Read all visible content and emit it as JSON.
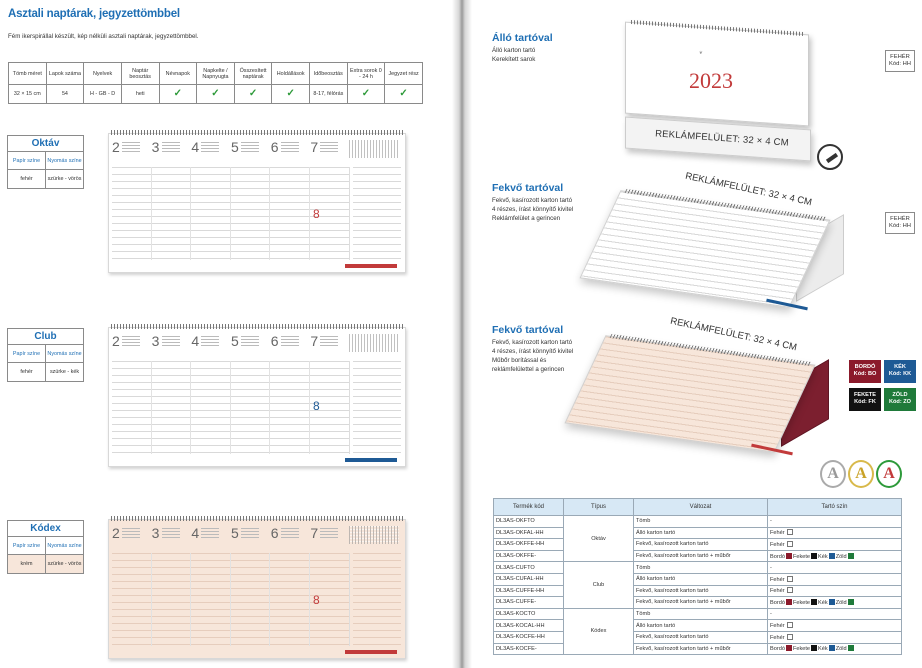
{
  "left": {
    "title": "Asztali naptárak, jegyzettömbbel",
    "intro": "Fém ikerspirállal készült, kép nélküli asztali naptárak, jegyzettömbbel.",
    "spec_headers": [
      "Tömb méret",
      "Lapok száma",
      "Nyelvek",
      "Naptár beosztás",
      "Névnapok",
      "Napkelte / Napnyugta",
      "Összesített naptárak",
      "Holdállások",
      "Időbeosztás",
      "Extra sorok 0 - 24 h",
      "Jegyzet rész"
    ],
    "spec_values": [
      "32 × 15 cm",
      "54",
      "H - GB - D",
      "heti",
      "✓",
      "✓",
      "✓",
      "✓",
      "8-17, félórás",
      "✓",
      "✓"
    ],
    "variant_head_paper": "Papír színe",
    "variant_head_print": "Nyomás színe",
    "variants": [
      {
        "name": "Oktáv",
        "paper": "fehér",
        "print": "szürke - vörös"
      },
      {
        "name": "Club",
        "paper": "fehér",
        "print": "szürke - kék"
      },
      {
        "name": "Kódex",
        "paper": "krém",
        "print": "szürke - vörös"
      }
    ],
    "pad_days": [
      "2",
      "3",
      "4",
      "5",
      "6",
      "7"
    ],
    "pad_eight": "8"
  },
  "right": {
    "sections": [
      {
        "title": "Álló tartóval",
        "lines": [
          "Álló karton tartó",
          "Kerekített sarok"
        ]
      },
      {
        "title": "Fekvő tartóval",
        "lines": [
          "Fekvő, kasírozott karton tartó",
          "4 részes, írást könnyítő kivitel",
          "Reklámfelület a gerincen"
        ]
      },
      {
        "title": "Fekvő tartóval",
        "lines": [
          "Fekvő, kasírozott karton tartó",
          "4 részes, írást könnyítő kivitel",
          "Műbőr borítással és",
          "reklámfelülettel a gerincen"
        ]
      }
    ],
    "year": "2023",
    "ad_label": "REKLÁMFELÜLET: 32 × 4 CM",
    "code_boxes": [
      {
        "l1": "FEHÉR",
        "l2": "Kód: HH"
      },
      {
        "l1": "FEHÉR",
        "l2": "Kód: HH"
      }
    ],
    "color_badges": [
      {
        "l1": "BORDÓ",
        "l2": "Kód: BO",
        "color": "#8b1a2b"
      },
      {
        "l1": "KÉK",
        "l2": "Kód: KK",
        "color": "#1e5a95"
      },
      {
        "l1": "FEKETE",
        "l2": "Kód: FK",
        "color": "#111111"
      },
      {
        "l1": "ZÖLD",
        "l2": "Kód: ZO",
        "color": "#1f7a3a"
      }
    ],
    "awards": [
      "A",
      "A",
      "A"
    ],
    "table_headers": [
      "Termék kód",
      "Típus",
      "Változat",
      "Tartó szín"
    ],
    "types": [
      "Oktáv",
      "Club",
      "Kódex"
    ],
    "rows": [
      {
        "code": "DL3AS-OKFTO",
        "variant": "Tömb",
        "color": "-"
      },
      {
        "code": "DL3AS-OKFAL-HH",
        "variant": "Álló karton tartó",
        "color": "Fehér"
      },
      {
        "code": "DL3AS-OKFFE-HH",
        "variant": "Fekvő, kasírozott karton tartó",
        "color": "Fehér"
      },
      {
        "code": "DL3AS-OKFFE-",
        "variant": "Fekvő, kasírozott karton tartó + műbőr",
        "color": "Bordó"
      },
      {
        "code": "DL3AS-CUFTO",
        "variant": "Tömb",
        "color": "-"
      },
      {
        "code": "DL3AS-CUFAL-HH",
        "variant": "Álló karton tartó",
        "color": "Fehér"
      },
      {
        "code": "DL3AS-CUFFE-HH",
        "variant": "Fekvő, kasírozott karton tartó",
        "color": "Fehér"
      },
      {
        "code": "DL3AS-CUFFE-",
        "variant": "Fekvő, kasírozott karton tartó + műbőr",
        "color": "Bordó"
      },
      {
        "code": "DL3AS-KOCTO",
        "variant": "Tömb",
        "color": "-"
      },
      {
        "code": "DL3AS-KOCAL-HH",
        "variant": "Álló karton tartó",
        "color": "Fehér"
      },
      {
        "code": "DL3AS-KOCFE-HH",
        "variant": "Fekvő, kasírozott karton tartó",
        "color": "Fehér"
      },
      {
        "code": "DL3AS-KOCFE-",
        "variant": "Fekvő, kasírozott karton tartó + műbőr",
        "color": "Bordó"
      }
    ],
    "swatch_labels": [
      "Fekete",
      "Kék",
      "Zöld"
    ],
    "swatch_colors": {
      "bordo": "#8b1a2b",
      "fekete": "#111111",
      "kek": "#1e5a95",
      "zold": "#1f7a3a"
    }
  },
  "colors": {
    "accent": "#1f6fb4",
    "tick": "#2e9a3a",
    "red": "#c23a3a",
    "cream": "#f7e6da"
  }
}
